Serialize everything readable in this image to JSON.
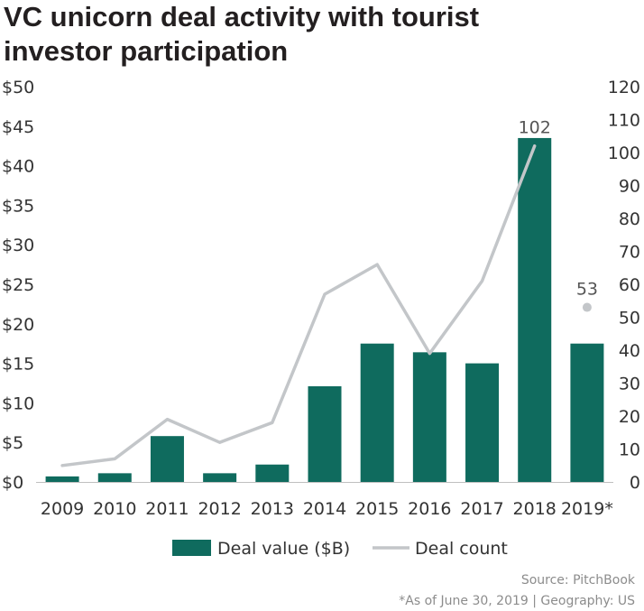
{
  "title_line1": "VC unicorn deal activity with tourist",
  "title_line2": "investor participation",
  "source": "Source: PitchBook",
  "note": "*As of June 30, 2019 | Geography: US",
  "chart_data": {
    "type": "bar",
    "categories": [
      "2009",
      "2010",
      "2011",
      "2012",
      "2013",
      "2014",
      "2015",
      "2016",
      "2017",
      "2018",
      "2019*"
    ],
    "series": [
      {
        "name": "Deal value ($B)",
        "type": "bar",
        "axis": "left",
        "color": "#0f6b5e",
        "values": [
          0.7,
          1.1,
          5.8,
          1.1,
          2.2,
          12.1,
          17.5,
          16.4,
          15.0,
          43.5,
          17.5
        ]
      },
      {
        "name": "Deal count",
        "type": "line",
        "axis": "right",
        "color": "#c3c6c9",
        "values": [
          5,
          7,
          19,
          12,
          18,
          57,
          66,
          39,
          61,
          102,
          53
        ],
        "point_only_index": 10
      }
    ],
    "data_labels": [
      {
        "series": 1,
        "index": 9,
        "text": "102"
      },
      {
        "series": 1,
        "index": 10,
        "text": "53"
      }
    ],
    "y_left": {
      "min": 0,
      "max": 50,
      "step": 5,
      "tick_labels": [
        "$0",
        "$5",
        "$10",
        "$15",
        "$20",
        "$25",
        "$30",
        "$35",
        "$40",
        "$45",
        "$50"
      ]
    },
    "y_right": {
      "min": 0,
      "max": 120,
      "step": 10,
      "tick_labels": [
        "0",
        "10",
        "20",
        "30",
        "40",
        "50",
        "60",
        "70",
        "80",
        "90",
        "100",
        "110",
        "120"
      ]
    },
    "grid": false,
    "legend_position": "bottom"
  }
}
